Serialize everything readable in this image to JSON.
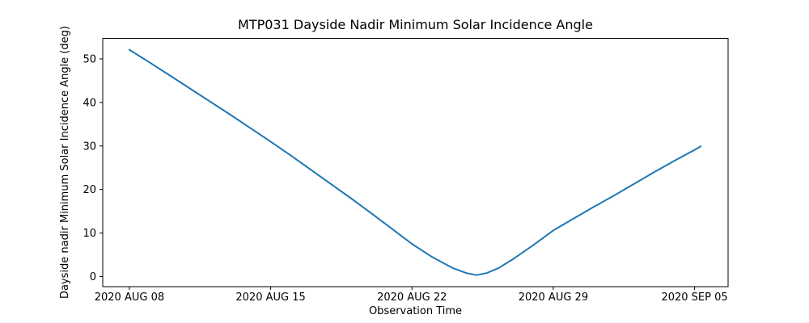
{
  "page": {
    "background_color": "#ffffff",
    "text_color": "#000000"
  },
  "chart_data": {
    "type": "line",
    "title": "MTP031 Dayside Nadir Minimum Solar Incidence Angle",
    "xlabel": "Observation Time",
    "ylabel": "Dayside nadir Minimum Solar Incidence Angle (deg)",
    "x_unit": "days since 2020 AUG 08",
    "xlim": [
      -1.32,
      29.66
    ],
    "ylim": [
      -2.31,
      54.72
    ],
    "grid": false,
    "legend_position": "none",
    "line_color": "#1f77b4",
    "line_width": 2,
    "axis_color": "#000000",
    "x_ticks": [
      {
        "pos": 0,
        "label": "2020 AUG 08"
      },
      {
        "pos": 7,
        "label": "2020 AUG 15"
      },
      {
        "pos": 14,
        "label": "2020 AUG 22"
      },
      {
        "pos": 21,
        "label": "2020 AUG 29"
      },
      {
        "pos": 28,
        "label": "2020 SEP 05"
      }
    ],
    "y_ticks": [
      {
        "pos": 0,
        "label": "0"
      },
      {
        "pos": 10,
        "label": "10"
      },
      {
        "pos": 20,
        "label": "20"
      },
      {
        "pos": 30,
        "label": "30"
      },
      {
        "pos": 40,
        "label": "40"
      },
      {
        "pos": 50,
        "label": "50"
      }
    ],
    "series": [
      {
        "name": "dayside-nadir-minimum-solar-incidence-angle",
        "points": [
          [
            0,
            52.1
          ],
          [
            1,
            49.2
          ],
          [
            2,
            46.2
          ],
          [
            3,
            43.2
          ],
          [
            4,
            40.2
          ],
          [
            5,
            37.2
          ],
          [
            6,
            34.1
          ],
          [
            7,
            31.0
          ],
          [
            8,
            27.8
          ],
          [
            9,
            24.5
          ],
          [
            10,
            21.2
          ],
          [
            11,
            17.9
          ],
          [
            12,
            14.5
          ],
          [
            13,
            11.0
          ],
          [
            14,
            7.5
          ],
          [
            15,
            4.5
          ],
          [
            16,
            2.0
          ],
          [
            16.7,
            0.8
          ],
          [
            17.2,
            0.35
          ],
          [
            17.7,
            0.8
          ],
          [
            18.3,
            2.0
          ],
          [
            19,
            4.0
          ],
          [
            20,
            7.2
          ],
          [
            21,
            10.6
          ],
          [
            22,
            13.3
          ],
          [
            23,
            16.0
          ],
          [
            24,
            18.6
          ],
          [
            25,
            21.3
          ],
          [
            26,
            24.0
          ],
          [
            27,
            26.6
          ],
          [
            28,
            29.1
          ],
          [
            28.3,
            29.9
          ]
        ]
      }
    ]
  }
}
